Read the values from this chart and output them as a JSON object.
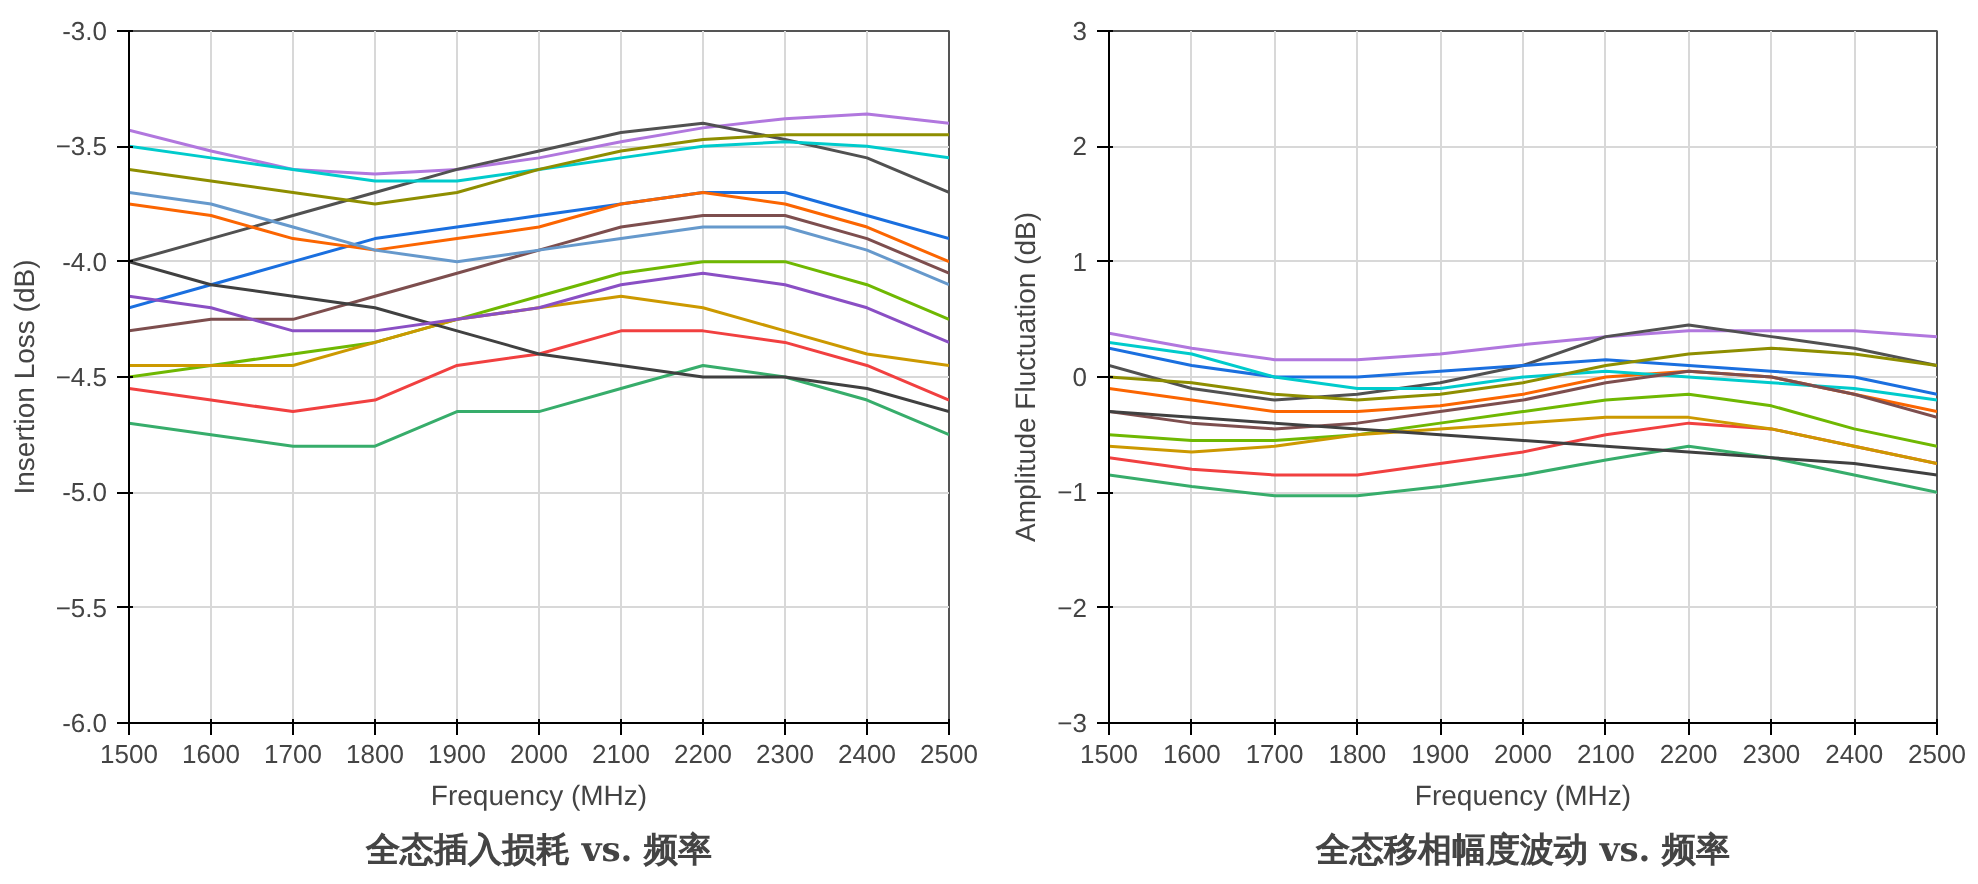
{
  "chart_data": [
    {
      "type": "line",
      "title": "全态插入损耗 vs. 频率",
      "xlabel": "Frequency (MHz)",
      "ylabel": "Insertion Loss (dB)",
      "xlim": [
        1500,
        2500
      ],
      "xticks": [
        1500,
        1600,
        1700,
        1800,
        1900,
        2000,
        2100,
        2200,
        2300,
        2400,
        2500
      ],
      "ylim": [
        -6.0,
        -3.0
      ],
      "yticks": [
        {
          "value": -6,
          "label": "-6.0"
        },
        -5.5,
        {
          "value": -5,
          "label": "-5.0"
        },
        -4.5,
        {
          "value": -4,
          "label": "-4.0"
        },
        -3.5,
        {
          "value": -3,
          "label": "-3.0"
        }
      ],
      "grid": true,
      "x": [
        1500,
        1600,
        1700,
        1800,
        1900,
        2000,
        2100,
        2200,
        2300,
        2400,
        2500
      ],
      "series": [
        {
          "color": "#b177de",
          "values": [
            -3.43,
            -3.52,
            -3.6,
            -3.62,
            -3.6,
            -3.55,
            -3.48,
            -3.42,
            -3.38,
            -3.36,
            -3.4
          ]
        },
        {
          "color": "#515151",
          "values": [
            -4.0,
            -3.9,
            -3.8,
            -3.7,
            -3.6,
            -3.52,
            -3.44,
            -3.4,
            -3.47,
            -3.55,
            -3.7
          ]
        },
        {
          "color": "#37ad6b",
          "values": [
            -4.7,
            -4.75,
            -4.8,
            -4.8,
            -4.65,
            -4.65,
            -4.55,
            -4.45,
            -4.5,
            -4.6,
            -4.75
          ]
        },
        {
          "color": "#f14040",
          "values": [
            -4.55,
            -4.6,
            -4.65,
            -4.6,
            -4.45,
            -4.4,
            -4.3,
            -4.3,
            -4.35,
            -4.45,
            -4.6
          ]
        },
        {
          "color": "#1a6fdf",
          "values": [
            -4.2,
            -4.1,
            -4.0,
            -3.9,
            -3.85,
            -3.8,
            -3.75,
            -3.7,
            -3.7,
            -3.8,
            -3.9
          ]
        },
        {
          "color": "#6fb802",
          "values": [
            -4.5,
            -4.45,
            -4.4,
            -4.35,
            -4.25,
            -4.15,
            -4.05,
            -4.0,
            -4.0,
            -4.1,
            -4.25
          ]
        },
        {
          "color": "#fb6501",
          "values": [
            -3.75,
            -3.8,
            -3.9,
            -3.95,
            -3.9,
            -3.85,
            -3.75,
            -3.7,
            -3.75,
            -3.85,
            -4.0
          ]
        },
        {
          "color": "#00cbcc",
          "values": [
            -3.5,
            -3.55,
            -3.6,
            -3.65,
            -3.65,
            -3.6,
            -3.55,
            -3.5,
            -3.48,
            -3.5,
            -3.55
          ]
        },
        {
          "color": "#7d4e4e",
          "values": [
            -4.3,
            -4.25,
            -4.25,
            -4.15,
            -4.05,
            -3.95,
            -3.85,
            -3.8,
            -3.8,
            -3.9,
            -4.05
          ]
        },
        {
          "color": "#cc9900",
          "values": [
            -4.45,
            -4.45,
            -4.45,
            -4.35,
            -4.25,
            -4.2,
            -4.15,
            -4.2,
            -4.3,
            -4.4,
            -4.45
          ]
        },
        {
          "color": "#404040",
          "values": [
            -4.0,
            -4.1,
            -4.15,
            -4.2,
            -4.3,
            -4.4,
            -4.45,
            -4.5,
            -4.5,
            -4.55,
            -4.65
          ]
        },
        {
          "color": "#8e8e00",
          "values": [
            -3.6,
            -3.65,
            -3.7,
            -3.75,
            -3.7,
            -3.6,
            -3.52,
            -3.47,
            -3.45,
            -3.45,
            -3.45
          ]
        },
        {
          "color": "#6699cc",
          "values": [
            -3.7,
            -3.75,
            -3.85,
            -3.95,
            -4.0,
            -3.95,
            -3.9,
            -3.85,
            -3.85,
            -3.95,
            -4.1
          ]
        },
        {
          "color": "#8a4fc4",
          "values": [
            -4.15,
            -4.2,
            -4.3,
            -4.3,
            -4.25,
            -4.2,
            -4.1,
            -4.05,
            -4.1,
            -4.2,
            -4.35
          ]
        }
      ]
    },
    {
      "type": "line",
      "title": "全态移相幅度波动 vs. 频率",
      "xlabel": "Frequency (MHz)",
      "ylabel": "Amplitude Fluctuation (dB)",
      "xlim": [
        1500,
        2500
      ],
      "xticks": [
        1500,
        1600,
        1700,
        1800,
        1900,
        2000,
        2100,
        2200,
        2300,
        2400,
        2500
      ],
      "ylim": [
        -3,
        3
      ],
      "yticks": [
        -3,
        -2,
        -1,
        0,
        1,
        2,
        3
      ],
      "grid": true,
      "x": [
        1500,
        1600,
        1700,
        1800,
        1900,
        2000,
        2100,
        2200,
        2300,
        2400,
        2500
      ],
      "series": [
        {
          "color": "#b177de",
          "values": [
            0.38,
            0.25,
            0.15,
            0.15,
            0.2,
            0.28,
            0.35,
            0.4,
            0.4,
            0.4,
            0.35
          ]
        },
        {
          "color": "#515151",
          "values": [
            0.1,
            -0.1,
            -0.2,
            -0.15,
            -0.05,
            0.1,
            0.35,
            0.45,
            0.35,
            0.25,
            0.1
          ]
        },
        {
          "color": "#37ad6b",
          "values": [
            -0.85,
            -0.95,
            -1.03,
            -1.03,
            -0.95,
            -0.85,
            -0.72,
            -0.6,
            -0.7,
            -0.85,
            -1.0
          ]
        },
        {
          "color": "#f14040",
          "values": [
            -0.7,
            -0.8,
            -0.85,
            -0.85,
            -0.75,
            -0.65,
            -0.5,
            -0.4,
            -0.45,
            -0.6,
            -0.75
          ]
        },
        {
          "color": "#1a6fdf",
          "values": [
            0.25,
            0.1,
            0.0,
            0.0,
            0.05,
            0.1,
            0.15,
            0.1,
            0.05,
            0.0,
            -0.15
          ]
        },
        {
          "color": "#6fb802",
          "values": [
            -0.5,
            -0.55,
            -0.55,
            -0.5,
            -0.4,
            -0.3,
            -0.2,
            -0.15,
            -0.25,
            -0.45,
            -0.6
          ]
        },
        {
          "color": "#fb6501",
          "values": [
            -0.1,
            -0.2,
            -0.3,
            -0.3,
            -0.25,
            -0.15,
            0.0,
            0.05,
            0.0,
            -0.15,
            -0.3
          ]
        },
        {
          "color": "#00cbcc",
          "values": [
            0.3,
            0.2,
            0.0,
            -0.1,
            -0.1,
            0.0,
            0.05,
            0.0,
            -0.05,
            -0.1,
            -0.2
          ]
        },
        {
          "color": "#7d4e4e",
          "values": [
            -0.3,
            -0.4,
            -0.45,
            -0.4,
            -0.3,
            -0.2,
            -0.05,
            0.05,
            0.0,
            -0.15,
            -0.35
          ]
        },
        {
          "color": "#cc9900",
          "values": [
            -0.6,
            -0.65,
            -0.6,
            -0.5,
            -0.45,
            -0.4,
            -0.35,
            -0.35,
            -0.45,
            -0.6,
            -0.75
          ]
        },
        {
          "color": "#404040",
          "values": [
            -0.3,
            -0.35,
            -0.4,
            -0.45,
            -0.5,
            -0.55,
            -0.6,
            -0.65,
            -0.7,
            -0.75,
            -0.85
          ]
        },
        {
          "color": "#8e8e00",
          "values": [
            0.0,
            -0.05,
            -0.15,
            -0.2,
            -0.15,
            -0.05,
            0.1,
            0.2,
            0.25,
            0.2,
            0.1
          ]
        }
      ]
    }
  ]
}
